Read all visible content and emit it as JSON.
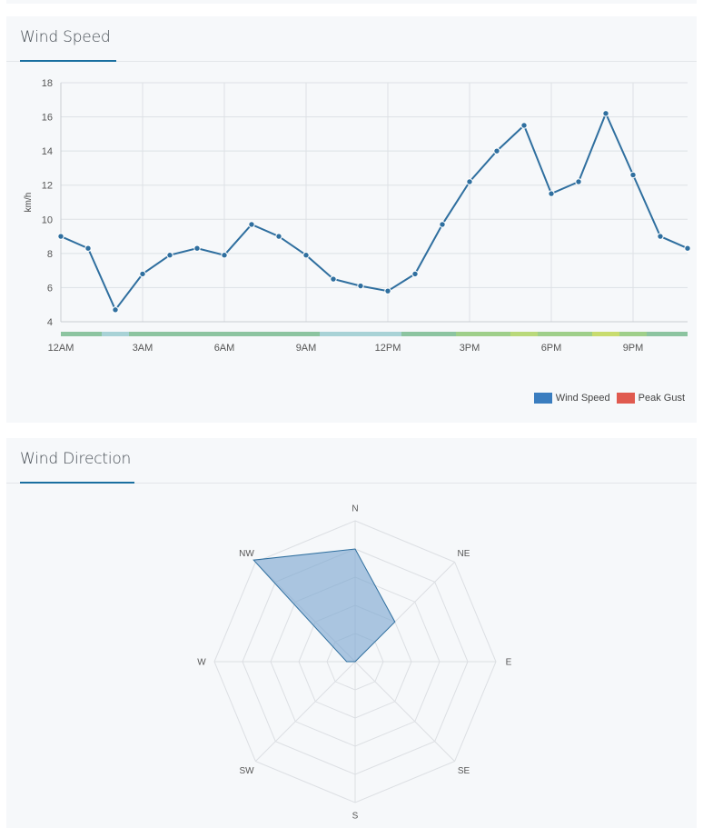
{
  "wind_speed_panel": {
    "title": "Wind Speed",
    "legend": [
      {
        "label": "Wind Speed",
        "color": "#3a7dbf"
      },
      {
        "label": "Peak Gust",
        "color": "#e05a4f"
      }
    ]
  },
  "wind_direction_panel": {
    "title": "Wind Direction"
  },
  "chart_data": [
    {
      "type": "line",
      "title": "Wind Speed",
      "ylabel": "km/h",
      "xlabel": "",
      "ylim": [
        4,
        18
      ],
      "yticks": [
        4,
        6,
        8,
        10,
        12,
        14,
        16,
        18
      ],
      "xtick_labels": [
        "12AM",
        "3AM",
        "6AM",
        "9AM",
        "12PM",
        "3PM",
        "6PM",
        "9PM"
      ],
      "x_hours": [
        0,
        1,
        2,
        3,
        4,
        5,
        6,
        7,
        8,
        9,
        10,
        11,
        12,
        13,
        14,
        15,
        16,
        17,
        18,
        19,
        20,
        21,
        22,
        23
      ],
      "series": [
        {
          "name": "Wind Speed",
          "color": "#2f6f9f",
          "values": [
            9.0,
            8.3,
            4.7,
            6.8,
            7.9,
            8.3,
            7.9,
            9.7,
            9.0,
            7.9,
            6.5,
            6.1,
            5.8,
            6.8,
            9.7,
            12.2,
            14.0,
            15.5,
            11.5,
            12.2,
            16.2,
            12.6,
            9.0,
            8.3
          ]
        }
      ],
      "intensity_strip_colors": [
        "#8cc4a0",
        "#8cc4a0",
        "#a8d2d6",
        "#8cc4a0",
        "#8cc4a0",
        "#8cc4a0",
        "#8cc4a0",
        "#8cc4a0",
        "#8cc4a0",
        "#8cc4a0",
        "#a8d2d6",
        "#a8d2d6",
        "#a8d2d6",
        "#8cc4a0",
        "#8cc4a0",
        "#9fcf8a",
        "#9fcf8a",
        "#b9d97a",
        "#9fcf8a",
        "#9fcf8a",
        "#c8dc6e",
        "#9fcf8a",
        "#8cc4a0",
        "#8cc4a0"
      ],
      "grid": true
    },
    {
      "type": "radar",
      "title": "Wind Direction",
      "categories": [
        "N",
        "NE",
        "E",
        "SE",
        "S",
        "SW",
        "W",
        "NW"
      ],
      "rmax": 5,
      "rings": 5,
      "series": [
        {
          "color": "#7ba7d0",
          "values": [
            4.0,
            2.0,
            0,
            0,
            0,
            0,
            0.3,
            5.1
          ]
        }
      ]
    }
  ]
}
